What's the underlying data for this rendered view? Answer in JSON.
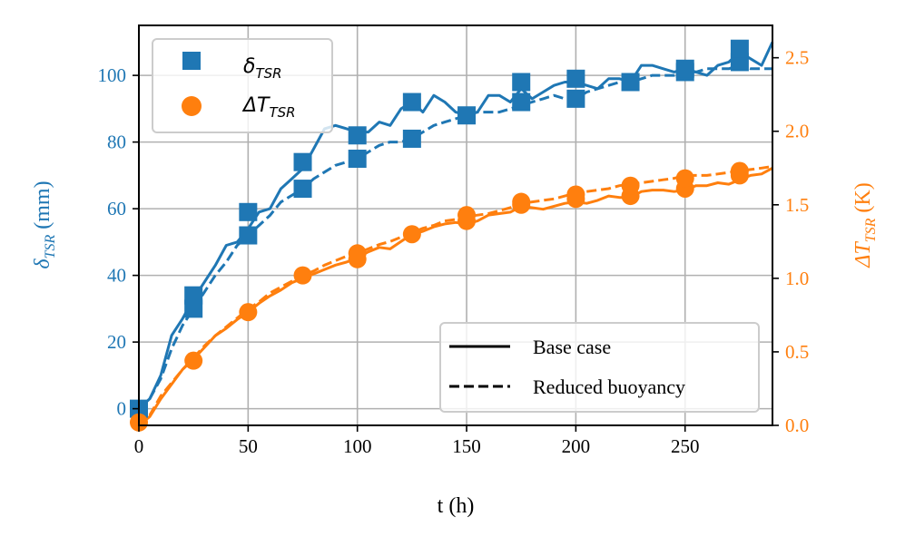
{
  "chart_data": {
    "type": "line",
    "xlabel": "t (h)",
    "xlim": [
      0,
      290
    ],
    "x_ticks": [
      0,
      50,
      100,
      150,
      200,
      250
    ],
    "y_left": {
      "label_main": "δ",
      "label_sub": "TSR",
      "label_unit": " (mm)",
      "lim": [
        -5,
        115
      ],
      "ticks": [
        0,
        20,
        40,
        60,
        80,
        100
      ],
      "color": "#1f77b4"
    },
    "y_right": {
      "label_main": "ΔT",
      "label_sub": "TSR",
      "label_unit": " (K)",
      "lim": [
        0.0,
        2.72
      ],
      "ticks": [
        0.0,
        0.5,
        1.0,
        1.5,
        2.0,
        2.5
      ],
      "tick_labels": [
        "0.0",
        "0.5",
        "1.0",
        "1.5",
        "2.0",
        "2.5"
      ],
      "color": "#ff7f0e"
    },
    "grid": true,
    "series": [
      {
        "name": "δ_TSR base case",
        "axis": "left",
        "style": "solid",
        "x": [
          0,
          5,
          10,
          15,
          20,
          25,
          30,
          35,
          40,
          45,
          50,
          55,
          60,
          65,
          70,
          75,
          80,
          85,
          90,
          95,
          100,
          105,
          110,
          115,
          120,
          125,
          130,
          135,
          140,
          145,
          150,
          155,
          160,
          165,
          170,
          175,
          180,
          185,
          190,
          195,
          200,
          205,
          210,
          215,
          220,
          225,
          230,
          235,
          240,
          245,
          250,
          255,
          260,
          265,
          270,
          275,
          280,
          285,
          290
        ],
        "y": [
          0,
          3,
          10,
          22,
          27,
          33,
          38,
          43,
          49,
          50,
          54,
          59,
          60,
          66,
          69,
          72,
          78,
          84,
          85,
          84,
          83,
          83,
          86,
          85,
          90,
          92,
          89,
          94,
          92,
          89,
          88,
          89,
          94,
          94,
          92,
          96,
          93,
          95,
          97,
          98,
          98,
          97,
          96,
          99,
          99,
          98,
          103,
          103,
          102,
          101,
          102,
          101,
          100,
          103,
          104,
          107,
          105,
          103,
          110
        ]
      },
      {
        "name": "δ_TSR reduced buoyancy",
        "axis": "left",
        "style": "dashed",
        "x": [
          0,
          5,
          10,
          15,
          20,
          25,
          30,
          35,
          40,
          45,
          50,
          55,
          60,
          65,
          70,
          75,
          80,
          85,
          90,
          95,
          100,
          105,
          110,
          115,
          120,
          125,
          130,
          135,
          140,
          145,
          150,
          155,
          160,
          165,
          170,
          175,
          180,
          185,
          190,
          195,
          200,
          205,
          210,
          215,
          220,
          225,
          230,
          235,
          240,
          245,
          250,
          255,
          260,
          265,
          270,
          275,
          280,
          285,
          290
        ],
        "y": [
          0,
          3,
          9,
          18,
          25,
          30,
          35,
          40,
          44,
          49,
          52,
          55,
          58,
          62,
          64,
          66,
          69,
          71,
          73,
          74,
          75,
          77,
          79,
          80,
          80,
          81,
          83,
          85,
          86,
          87,
          88,
          89,
          89,
          89,
          90,
          91,
          92,
          93,
          94,
          93,
          93,
          95,
          96,
          97,
          98,
          98,
          99,
          100,
          100,
          100,
          101,
          101,
          102,
          102,
          102,
          103,
          102,
          102,
          102
        ]
      },
      {
        "name": "ΔT_TSR base case",
        "axis": "right",
        "style": "solid",
        "x": [
          0,
          5,
          10,
          15,
          20,
          25,
          30,
          35,
          40,
          45,
          50,
          55,
          60,
          65,
          70,
          75,
          80,
          85,
          90,
          95,
          100,
          105,
          110,
          115,
          120,
          125,
          130,
          135,
          140,
          145,
          150,
          155,
          160,
          165,
          170,
          175,
          180,
          185,
          190,
          195,
          200,
          205,
          210,
          215,
          220,
          225,
          230,
          235,
          240,
          245,
          250,
          255,
          260,
          265,
          270,
          275,
          280,
          285,
          290
        ],
        "y": [
          0.0,
          0.06,
          0.18,
          0.28,
          0.38,
          0.45,
          0.53,
          0.61,
          0.66,
          0.72,
          0.77,
          0.83,
          0.88,
          0.92,
          0.97,
          1.0,
          1.03,
          1.06,
          1.09,
          1.11,
          1.14,
          1.18,
          1.21,
          1.2,
          1.25,
          1.3,
          1.32,
          1.35,
          1.37,
          1.38,
          1.37,
          1.39,
          1.43,
          1.44,
          1.45,
          1.49,
          1.48,
          1.47,
          1.49,
          1.51,
          1.52,
          1.51,
          1.53,
          1.56,
          1.55,
          1.55,
          1.59,
          1.6,
          1.6,
          1.59,
          1.6,
          1.63,
          1.63,
          1.65,
          1.64,
          1.67,
          1.7,
          1.71,
          1.75
        ]
      },
      {
        "name": "ΔT_TSR reduced buoyancy",
        "axis": "right",
        "style": "dashed",
        "x": [
          0,
          5,
          10,
          15,
          20,
          25,
          30,
          35,
          40,
          45,
          50,
          55,
          60,
          65,
          70,
          75,
          80,
          85,
          90,
          95,
          100,
          105,
          110,
          115,
          120,
          125,
          130,
          135,
          140,
          145,
          150,
          155,
          160,
          165,
          170,
          175,
          180,
          185,
          190,
          195,
          200,
          205,
          210,
          215,
          220,
          225,
          230,
          235,
          240,
          245,
          250,
          255,
          260,
          265,
          270,
          275,
          280,
          285,
          290
        ],
        "y": [
          0.0,
          0.07,
          0.2,
          0.29,
          0.38,
          0.46,
          0.54,
          0.61,
          0.67,
          0.73,
          0.79,
          0.84,
          0.9,
          0.94,
          0.98,
          1.02,
          1.05,
          1.09,
          1.12,
          1.15,
          1.17,
          1.2,
          1.23,
          1.25,
          1.28,
          1.31,
          1.34,
          1.36,
          1.39,
          1.4,
          1.42,
          1.43,
          1.44,
          1.46,
          1.48,
          1.51,
          1.52,
          1.53,
          1.54,
          1.56,
          1.58,
          1.59,
          1.6,
          1.61,
          1.63,
          1.64,
          1.65,
          1.66,
          1.67,
          1.68,
          1.7,
          1.7,
          1.7,
          1.71,
          1.72,
          1.73,
          1.74,
          1.75,
          1.76
        ]
      }
    ],
    "markers": {
      "delta_squares": [
        [
          0,
          0
        ],
        [
          25,
          30
        ],
        [
          25,
          34
        ],
        [
          50,
          52
        ],
        [
          50,
          59
        ],
        [
          75,
          66
        ],
        [
          75,
          74
        ],
        [
          100,
          75
        ],
        [
          100,
          82
        ],
        [
          125,
          81
        ],
        [
          125,
          92
        ],
        [
          150,
          88
        ],
        [
          175,
          92
        ],
        [
          175,
          98
        ],
        [
          200,
          93
        ],
        [
          200,
          99
        ],
        [
          225,
          98
        ],
        [
          250,
          101
        ],
        [
          250,
          102
        ],
        [
          275,
          104
        ],
        [
          275,
          108
        ]
      ],
      "dT_circles": [
        [
          0,
          0.02
        ],
        [
          25,
          0.44
        ],
        [
          50,
          0.77
        ],
        [
          75,
          1.02
        ],
        [
          100,
          1.13
        ],
        [
          100,
          1.17
        ],
        [
          125,
          1.3
        ],
        [
          150,
          1.39
        ],
        [
          150,
          1.43
        ],
        [
          175,
          1.5
        ],
        [
          175,
          1.52
        ],
        [
          200,
          1.54
        ],
        [
          200,
          1.57
        ],
        [
          225,
          1.56
        ],
        [
          225,
          1.63
        ],
        [
          250,
          1.61
        ],
        [
          250,
          1.68
        ],
        [
          275,
          1.7
        ],
        [
          275,
          1.73
        ]
      ]
    },
    "legend_top_left": {
      "placement": "top-left",
      "entries": [
        {
          "main": "δ",
          "sub": "TSR",
          "marker": "square",
          "color": "#1f77b4"
        },
        {
          "main": "ΔT",
          "sub": "TSR",
          "marker": "circle",
          "color": "#ff7f0e"
        }
      ]
    },
    "legend_bottom_right": {
      "placement": "bottom-right",
      "entries": [
        {
          "label": "Base case",
          "style": "solid"
        },
        {
          "label": "Reduced buoyancy",
          "style": "dashed"
        }
      ]
    }
  }
}
